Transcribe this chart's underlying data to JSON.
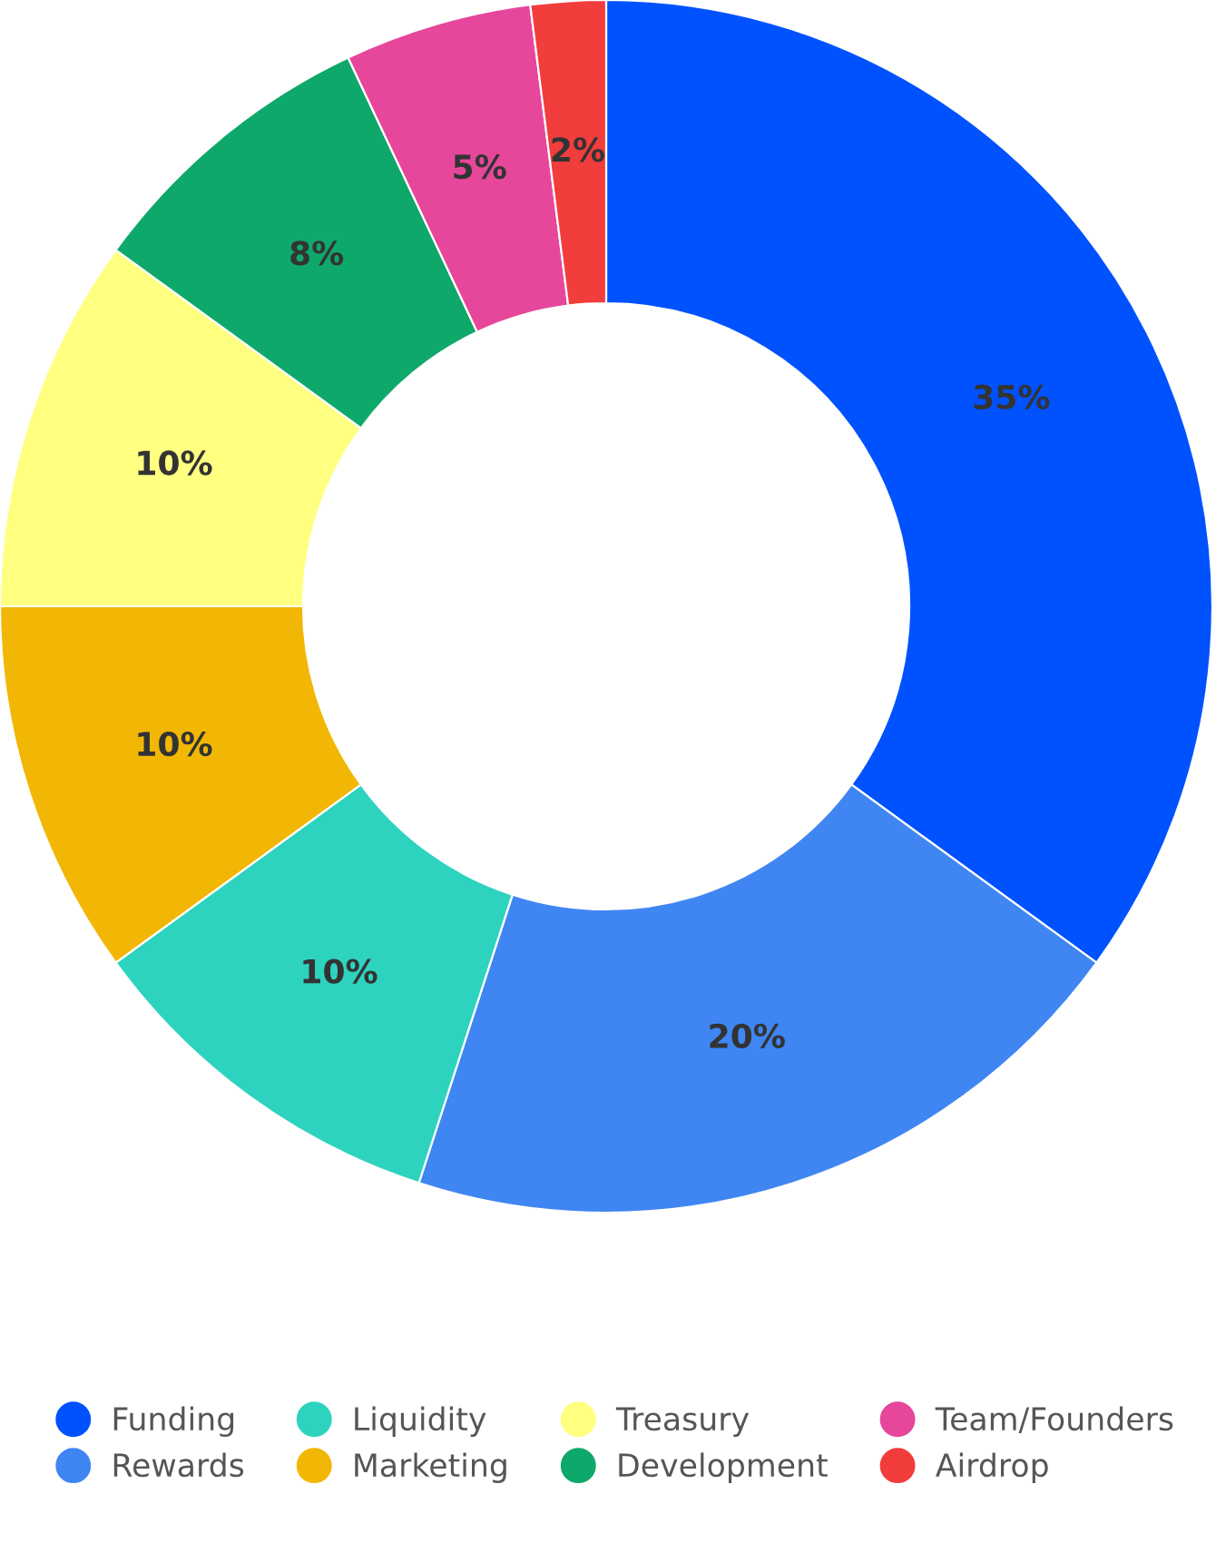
{
  "chart_data": {
    "type": "donut",
    "categories": [
      "Funding",
      "Rewards",
      "Liquidity",
      "Marketing",
      "Treasury",
      "Development",
      "Team/Founders",
      "Airdrop"
    ],
    "values": [
      35,
      20,
      10,
      10,
      10,
      8,
      5,
      2
    ],
    "value_labels": [
      "35%",
      "20%",
      "10%",
      "10%",
      "10%",
      "8%",
      "5%",
      "2%"
    ],
    "colors": [
      "#0052ff",
      "#3f86f2",
      "#2ed3bf",
      "#f2b705",
      "#ffff80",
      "#0fa86b",
      "#e6479b",
      "#f23d3d"
    ],
    "legend": "bottom"
  }
}
